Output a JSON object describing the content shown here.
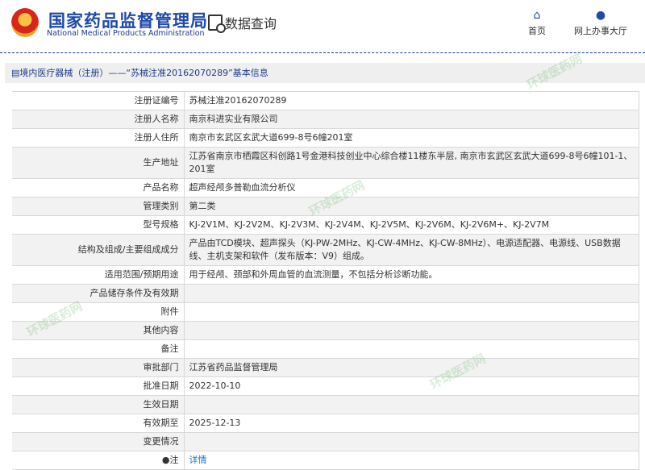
{
  "header": {
    "title_cn": "国家药品监督管理局",
    "title_en": "National Medical Products Administration",
    "query": "数据查询",
    "nav": [
      {
        "label": "首页",
        "icon": "home-icon"
      },
      {
        "label": "网上办事大厅",
        "icon": "user-icon"
      }
    ]
  },
  "breadcrumb": "境内医疗器械（注册）——“苏械注准20162070289”基本信息",
  "rows": [
    {
      "label": "注册证编号",
      "value": "苏械注准20162070289"
    },
    {
      "label": "注册人名称",
      "value": "南京科进实业有限公司"
    },
    {
      "label": "注册人住所",
      "value": "南京市玄武区玄武大道699-8号6幢201室"
    },
    {
      "label": "生产地址",
      "value": "江苏省南京市栖霞区科创路1号金港科技创业中心综合楼11楼东半层, 南京市玄武区玄武大道699-8号6幢101-1、201室"
    },
    {
      "label": "产品名称",
      "value": "超声经颅多普勒血流分析仪"
    },
    {
      "label": "管理类别",
      "value": "第二类"
    },
    {
      "label": "型号规格",
      "value": "KJ-2V1M、KJ-2V2M、KJ-2V3M、KJ-2V4M、KJ-2V5M、KJ-2V6M、KJ-2V6M+、KJ-2V7M"
    },
    {
      "label": "结构及组成/主要组成成分",
      "value": "产品由TCD模块、超声探头（KJ-PW-2MHz、KJ-CW-4MHz、KJ-CW-8MHz）、电源适配器、电源线、USB数据线、主机支架和软件（发布版本：V9）组成。"
    },
    {
      "label": "适用范围/预期用途",
      "value": "用于经颅、颈部和外周血管的血流测量，不包括分析诊断功能。"
    },
    {
      "label": "产品储存条件及有效期",
      "value": ""
    },
    {
      "label": "附件",
      "value": ""
    },
    {
      "label": "其他内容",
      "value": ""
    },
    {
      "label": "备注",
      "value": ""
    },
    {
      "label": "审批部门",
      "value": "江苏省药品监督管理局"
    },
    {
      "label": "批准日期",
      "value": "2022-10-10"
    },
    {
      "label": "生效日期",
      "value": ""
    },
    {
      "label": "有效期至",
      "value": "2025-12-13"
    },
    {
      "label": "变更情况",
      "value": ""
    }
  ],
  "note": {
    "label": "注",
    "link": "详情"
  },
  "watermark": "环球医药网"
}
